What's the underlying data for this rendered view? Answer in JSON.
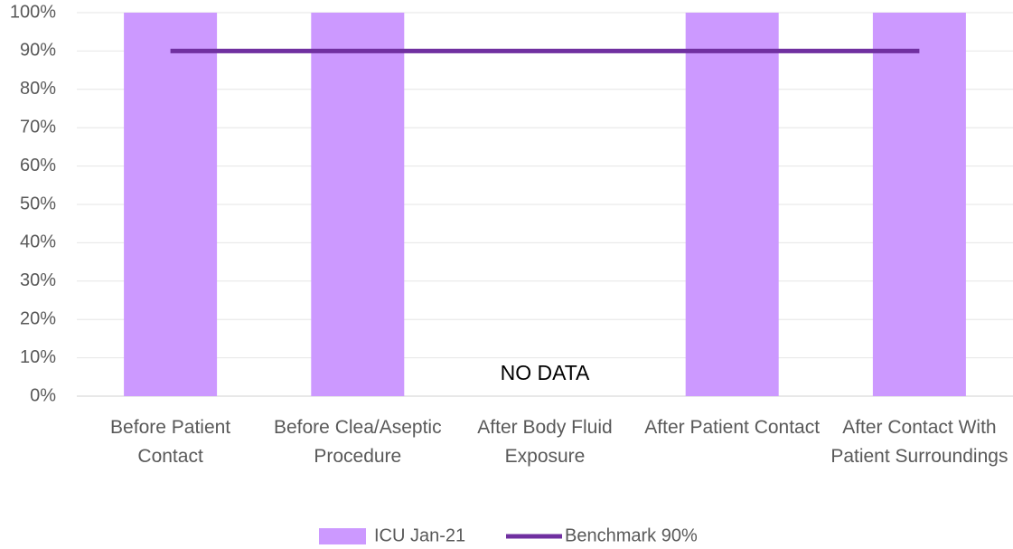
{
  "chart_data": {
    "type": "bar",
    "categories": [
      "Before Patient Contact",
      "Before Clea/Aseptic Procedure",
      "After Body Fluid Exposure",
      "After Patient Contact",
      "After Contact With Patient Surroundings"
    ],
    "series": [
      {
        "name": "ICU Jan-21",
        "type": "bar",
        "color": "#cc99ff",
        "values": [
          100,
          100,
          null,
          100,
          100
        ]
      },
      {
        "name": "Benchmark 90%",
        "type": "line",
        "color": "#7030a0",
        "values": [
          90,
          90,
          90,
          90,
          90
        ]
      }
    ],
    "annotations": [
      {
        "text": "NO DATA",
        "category": 2
      }
    ],
    "ylim": [
      0,
      100
    ],
    "yticks": [
      {
        "value": 0,
        "label": "0%"
      },
      {
        "value": 10,
        "label": "10%"
      },
      {
        "value": 20,
        "label": "20%"
      },
      {
        "value": 30,
        "label": "30%"
      },
      {
        "value": 40,
        "label": "40%"
      },
      {
        "value": 50,
        "label": "50%"
      },
      {
        "value": 60,
        "label": "60%"
      },
      {
        "value": 70,
        "label": "70%"
      },
      {
        "value": 80,
        "label": "80%"
      },
      {
        "value": 90,
        "label": "90%"
      },
      {
        "value": 100,
        "label": "100%"
      }
    ],
    "grid": true,
    "legend": "bottom"
  }
}
